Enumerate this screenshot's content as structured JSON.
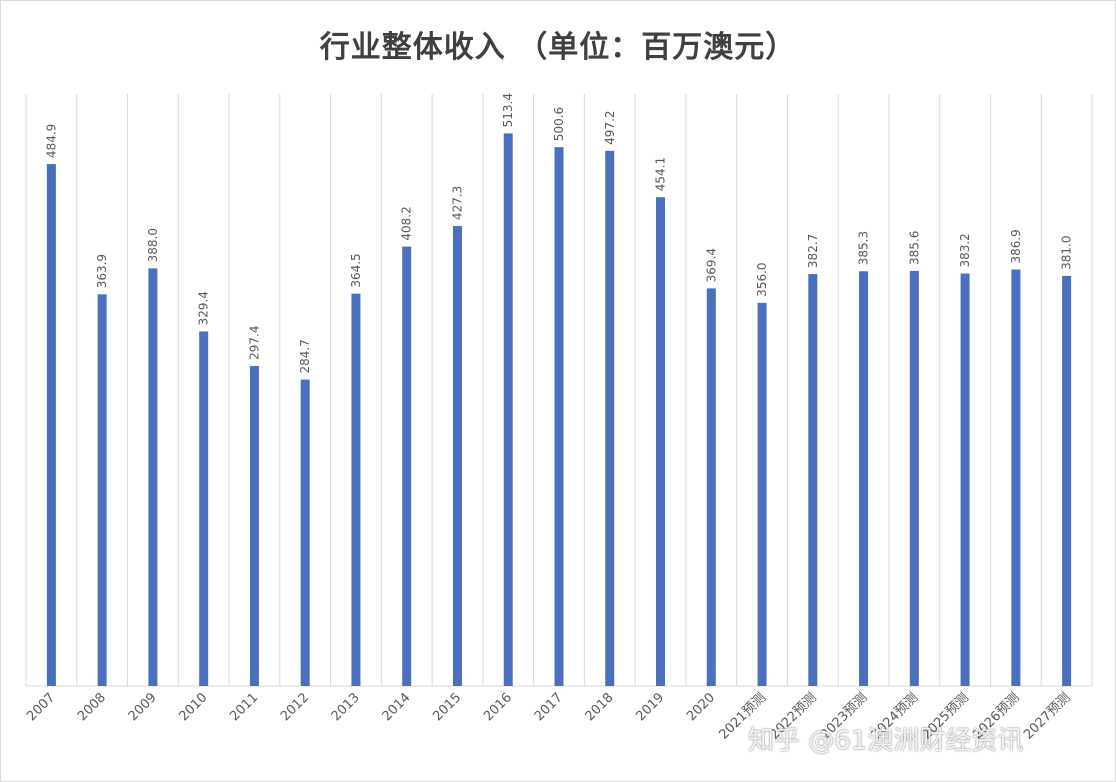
{
  "chart_data": {
    "type": "bar",
    "title": "行业整体收入 （单位：百万澳元）",
    "categories": [
      "2007",
      "2008",
      "2009",
      "2010",
      "2011",
      "2012",
      "2013",
      "2014",
      "2015",
      "2016",
      "2017",
      "2018",
      "2019",
      "2020",
      "2021预测",
      "2022预测",
      "2023预测",
      "2024预测",
      "2025预测",
      "2026预测",
      "2027预测"
    ],
    "values": [
      484.9,
      363.9,
      388.0,
      329.4,
      297.4,
      284.7,
      364.5,
      408.2,
      427.3,
      513.4,
      500.6,
      497.2,
      454.1,
      369.4,
      356.0,
      382.7,
      385.3,
      385.6,
      383.2,
      386.9,
      381.0
    ],
    "value_labels": [
      "484.9",
      "363.9",
      "388.0",
      "329.4",
      "297.4",
      "284.7",
      "364.5",
      "408.2",
      "427.3",
      "513.4",
      "500.6",
      "497.2",
      "454.1",
      "369.4",
      "356.0",
      "382.7",
      "385.3",
      "385.6",
      "383.2",
      "386.9",
      "381.0"
    ],
    "ylim": [
      0,
      550
    ],
    "grid": "vertical",
    "colors": {
      "bar": "#4a6fbd",
      "grid": "#d9d9d9",
      "text": "#595959",
      "title": "#404040"
    }
  },
  "watermark": "知乎 @61澳洲财经资讯"
}
